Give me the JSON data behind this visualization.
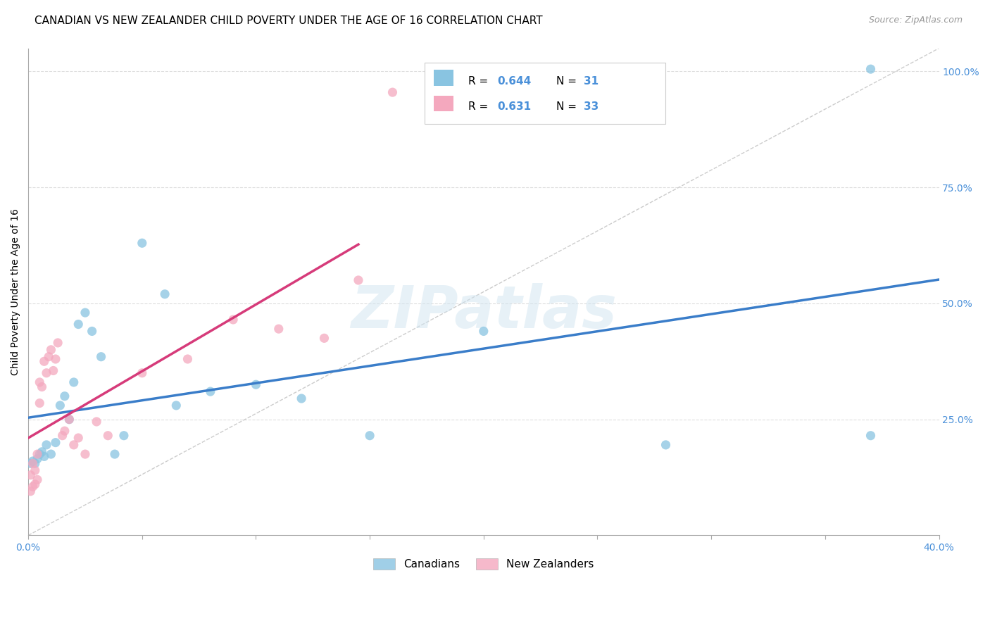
{
  "title": "CANADIAN VS NEW ZEALANDER CHILD POVERTY UNDER THE AGE OF 16 CORRELATION CHART",
  "source": "Source: ZipAtlas.com",
  "ylabel": "Child Poverty Under the Age of 16",
  "xlim": [
    0.0,
    0.4
  ],
  "ylim": [
    0.0,
    1.05
  ],
  "grid_color": "#dddddd",
  "background_color": "#ffffff",
  "watermark": "ZIPatlas",
  "canadian_color": "#89c4e1",
  "nz_color": "#f4a8be",
  "canadian_line_color": "#3a7dc9",
  "nz_line_color": "#d63b7a",
  "diagonal_color": "#cccccc",
  "tick_color": "#4a90d9",
  "title_fontsize": 11,
  "source_fontsize": 9,
  "label_fontsize": 10,
  "tick_fontsize": 10,
  "can_x": [
    0.001,
    0.002,
    0.003,
    0.004,
    0.005,
    0.006,
    0.007,
    0.008,
    0.01,
    0.012,
    0.014,
    0.016,
    0.018,
    0.02,
    0.022,
    0.025,
    0.028,
    0.032,
    0.038,
    0.042,
    0.05,
    0.06,
    0.065,
    0.08,
    0.1,
    0.12,
    0.15,
    0.2,
    0.28,
    0.37,
    0.37
  ],
  "can_y": [
    0.155,
    0.16,
    0.155,
    0.165,
    0.175,
    0.18,
    0.17,
    0.195,
    0.175,
    0.2,
    0.28,
    0.3,
    0.25,
    0.33,
    0.455,
    0.48,
    0.44,
    0.385,
    0.175,
    0.215,
    0.63,
    0.52,
    0.28,
    0.31,
    0.325,
    0.295,
    0.215,
    0.44,
    0.195,
    0.215,
    1.005
  ],
  "nz_x": [
    0.001,
    0.001,
    0.002,
    0.002,
    0.003,
    0.003,
    0.004,
    0.004,
    0.005,
    0.005,
    0.006,
    0.007,
    0.008,
    0.009,
    0.01,
    0.011,
    0.012,
    0.013,
    0.015,
    0.016,
    0.018,
    0.02,
    0.022,
    0.025,
    0.03,
    0.035,
    0.05,
    0.07,
    0.09,
    0.11,
    0.13,
    0.145,
    0.16
  ],
  "nz_y": [
    0.095,
    0.13,
    0.105,
    0.155,
    0.11,
    0.14,
    0.12,
    0.175,
    0.285,
    0.33,
    0.32,
    0.375,
    0.35,
    0.385,
    0.4,
    0.355,
    0.38,
    0.415,
    0.215,
    0.225,
    0.25,
    0.195,
    0.21,
    0.175,
    0.245,
    0.215,
    0.35,
    0.38,
    0.465,
    0.445,
    0.425,
    0.55,
    0.955
  ],
  "can_line_x0": 0.0,
  "can_line_x1": 0.4,
  "nz_line_x0": 0.0,
  "nz_line_x1": 0.145
}
